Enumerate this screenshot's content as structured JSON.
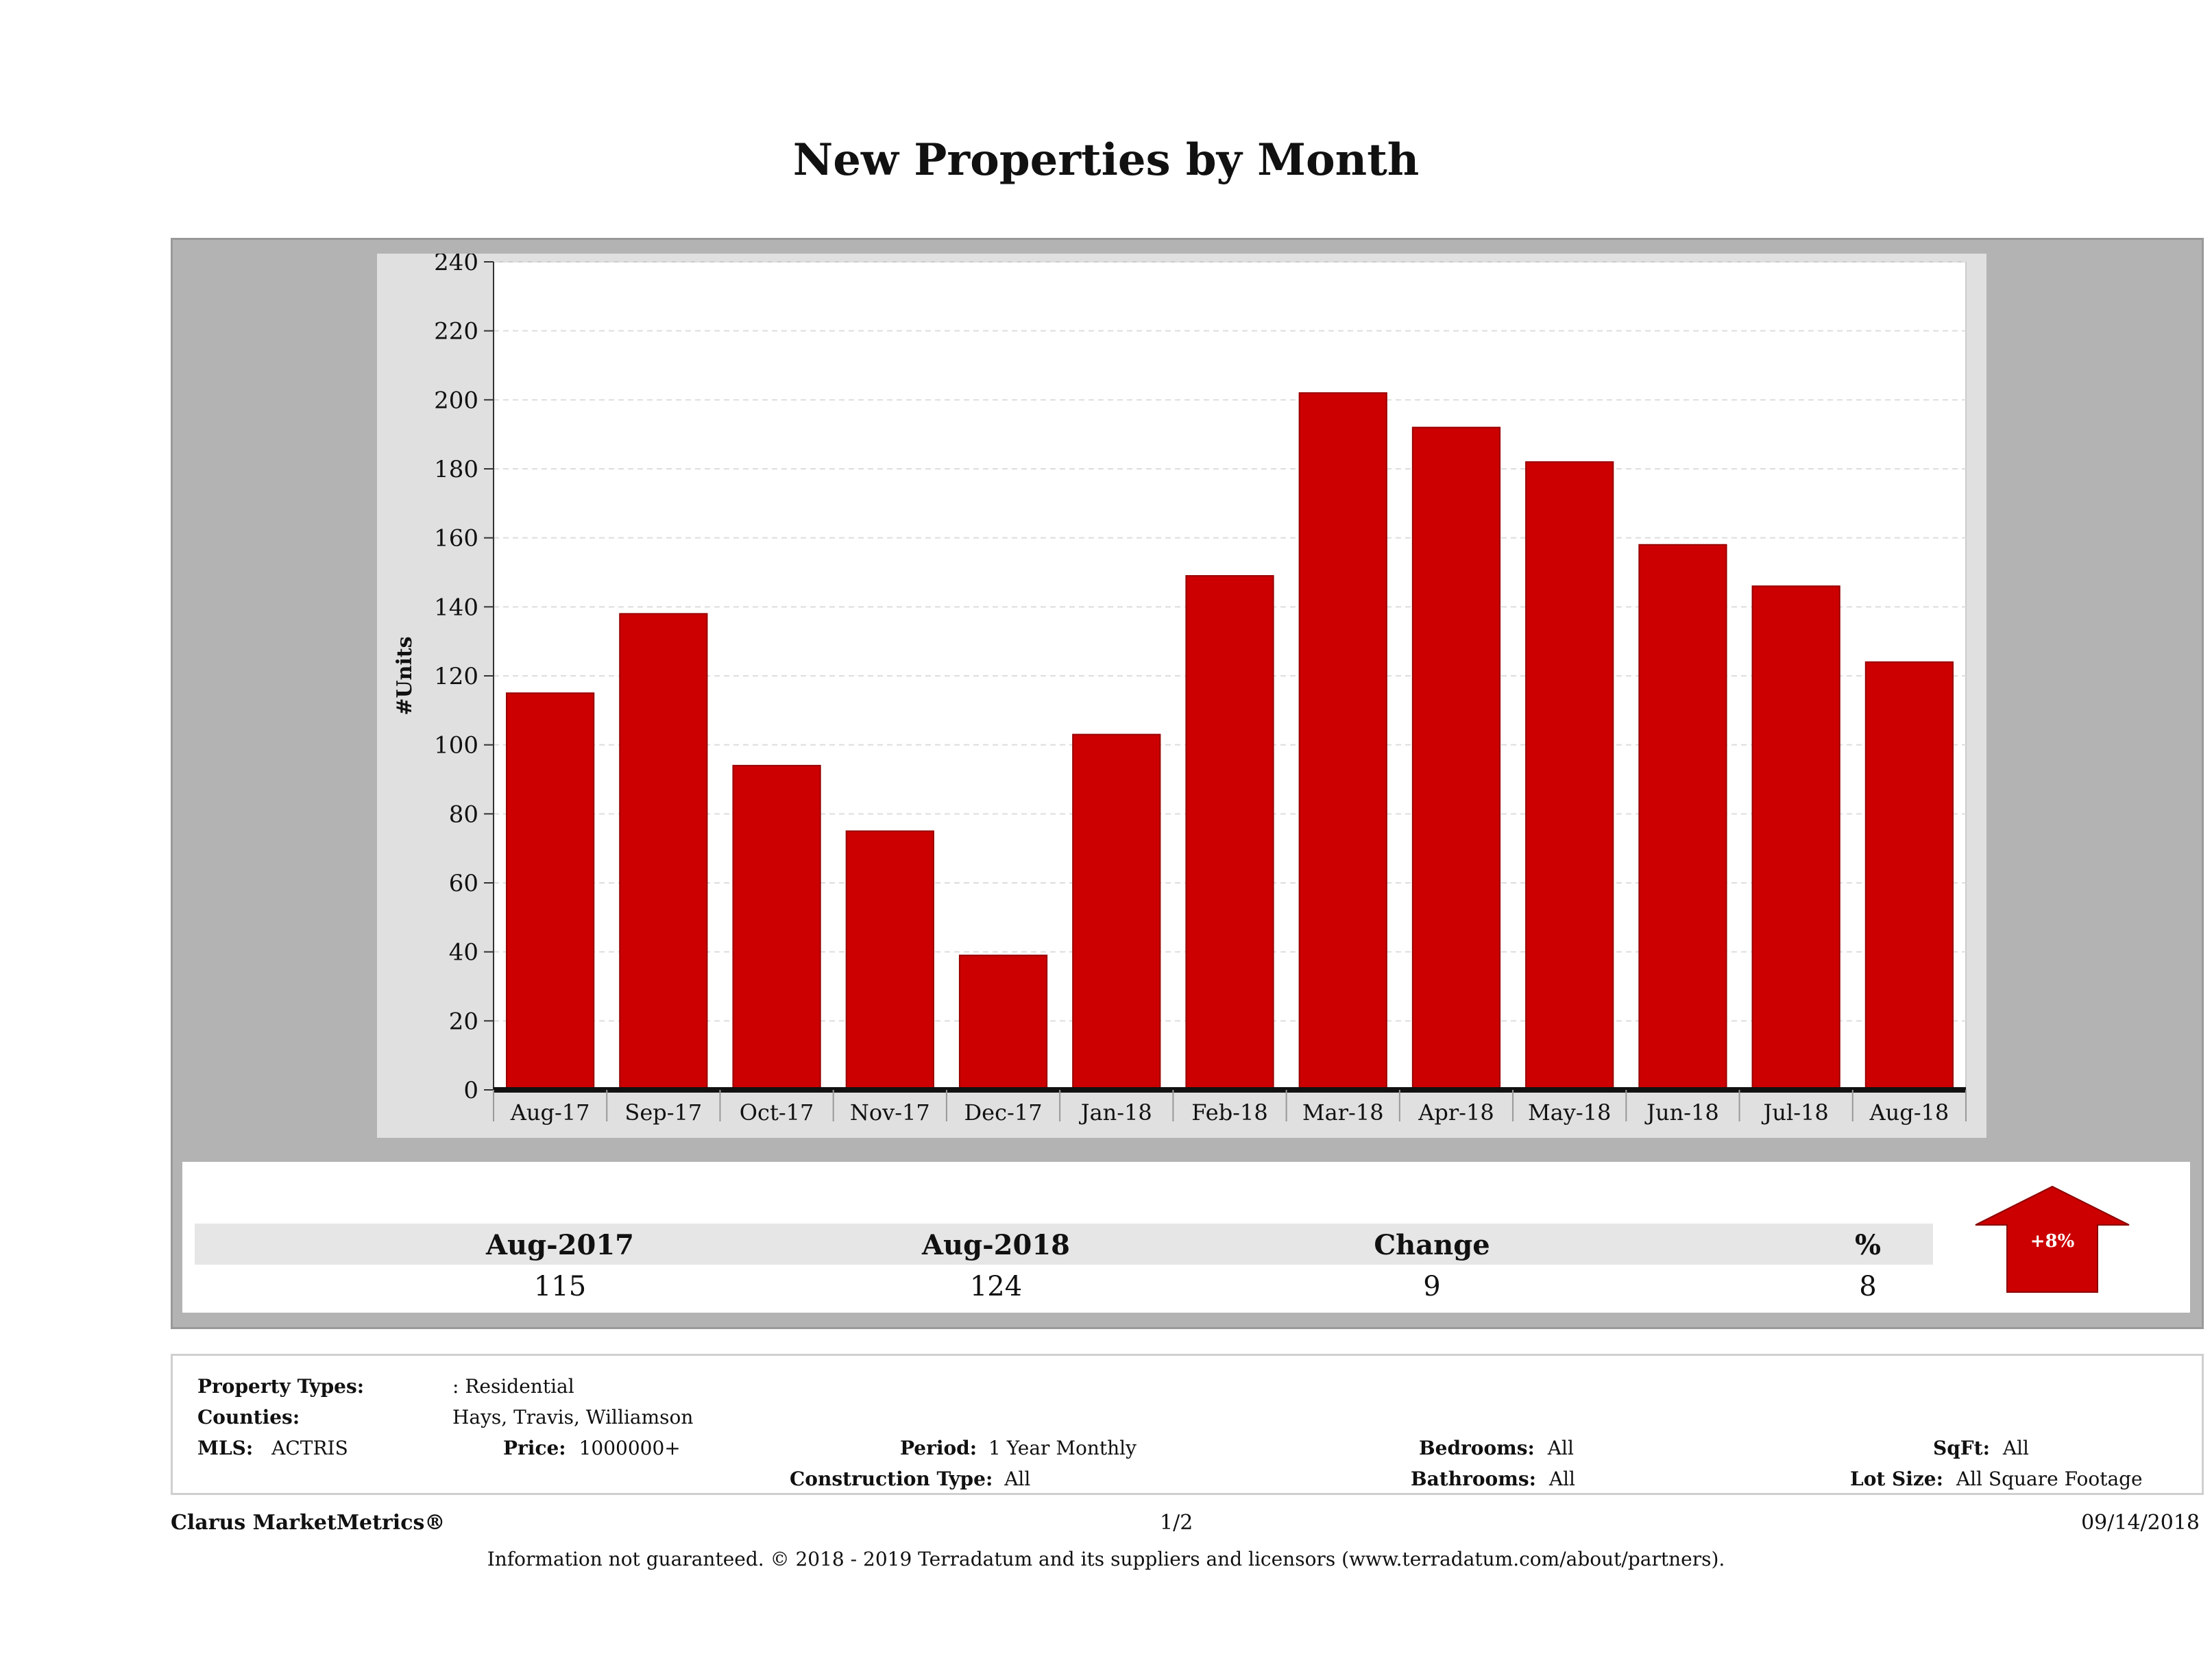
{
  "page": {
    "title": "New Properties by Month"
  },
  "chart_data": {
    "type": "bar",
    "ylabel": "#Units",
    "xlabel": "",
    "ylim": [
      0,
      240
    ],
    "yticks": [
      0,
      20,
      40,
      60,
      80,
      100,
      120,
      140,
      160,
      180,
      200,
      220,
      240
    ],
    "grid": true,
    "categories": [
      "Aug-17",
      "Sep-17",
      "Oct-17",
      "Nov-17",
      "Dec-17",
      "Jan-18",
      "Feb-18",
      "Mar-18",
      "Apr-18",
      "May-18",
      "Jun-18",
      "Jul-18",
      "Aug-18"
    ],
    "values": [
      115,
      138,
      94,
      75,
      39,
      103,
      149,
      202,
      192,
      182,
      158,
      146,
      124
    ],
    "bar_color": "#cc0000"
  },
  "summary": {
    "headers": [
      "Aug-2017",
      "Aug-2018",
      "Change",
      "%"
    ],
    "values": [
      "115",
      "124",
      "9",
      "8"
    ],
    "indicator": {
      "label": "+8%",
      "direction": "up",
      "color": "#cc0000"
    }
  },
  "info": {
    "property_types_label": "Property Types:",
    "property_types_value": ": Residential",
    "counties_label": "Counties:",
    "counties_value": "Hays, Travis, Williamson",
    "mls_label": "MLS:",
    "mls_value": "ACTRIS",
    "price_label": "Price:",
    "price_value": "1000000+",
    "period_label": "Period:",
    "period_value": "1 Year Monthly",
    "construction_label": "Construction Type:",
    "construction_value": "All",
    "bedrooms_label": "Bedrooms:",
    "bedrooms_value": "All",
    "bathrooms_label": "Bathrooms:",
    "bathrooms_value": "All",
    "sqft_label": "SqFt:",
    "sqft_value": "All",
    "lot_label": "Lot Size:",
    "lot_value": "All Square Footage"
  },
  "footer": {
    "brand": "Clarus MarketMetrics®",
    "page_number": "1/2",
    "date": "09/14/2018",
    "disclaimer": "Information not guaranteed. © 2018 - 2019 Terradatum and its suppliers and licensors (www.terradatum.com/about/partners)."
  }
}
